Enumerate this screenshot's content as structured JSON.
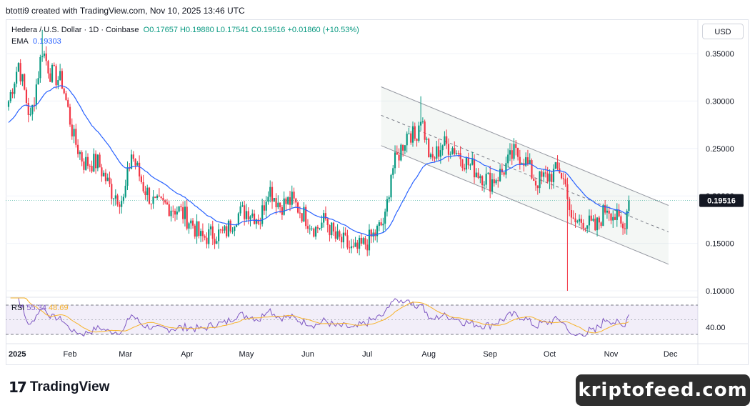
{
  "header": {
    "attribution": "btotti9 created with TradingView.com, Nov 10, 2025 13:46 UTC"
  },
  "legend": {
    "symbol": "Hedera / U.S. Dollar · 1D · Coinbase",
    "ohlc": "O0.17657  H0.19880  L0.17541  C0.19516  +0.01860 (+10.53%)",
    "ema_label": "EMA",
    "ema_value": "0.19303",
    "rsi_label": "RSI",
    "rsi_value": "55.34",
    "rsi_ma_value": "48.69"
  },
  "currency": "USD",
  "last_price_label": "0.19516",
  "footer": {
    "brand": "TradingView",
    "watermark": "kriptofeed.com"
  },
  "colors": {
    "up": "#089981",
    "down": "#f23645",
    "ema": "#2962ff",
    "rsi": "#7e57c2",
    "rsi_ma": "#f7b32b",
    "channel": "#9598a1"
  },
  "icons": [
    "tradingview-logo-icon"
  ],
  "chart_data": {
    "type": "candlestick",
    "price_axis": {
      "ticks": [
        0.35,
        0.3,
        0.25,
        0.2,
        0.15,
        0.1
      ],
      "tick_labels": [
        "0.35000",
        "0.30000",
        "0.25000",
        "0.20000",
        "0.15000",
        "0.10000"
      ],
      "ylim": [
        0.095,
        0.375
      ]
    },
    "rsi_axis": {
      "ticks": [
        40
      ],
      "tick_labels": [
        "40.00"
      ],
      "ylim": [
        20,
        90
      ],
      "bands": [
        30,
        70
      ]
    },
    "time_axis": {
      "labels": [
        "2025",
        "Feb",
        "Mar",
        "Apr",
        "May",
        "Jun",
        "Jul",
        "Aug",
        "Sep",
        "Oct",
        "Nov",
        "Dec"
      ],
      "start": "2025-01-01",
      "end": "2025-12-13"
    },
    "anchors": [
      [
        "2025-01-01",
        0.3
      ],
      [
        "2025-01-06",
        0.34
      ],
      [
        "2025-01-12",
        0.28
      ],
      [
        "2025-01-18",
        0.355
      ],
      [
        "2025-01-22",
        0.33
      ],
      [
        "2025-01-28",
        0.32
      ],
      [
        "2025-02-03",
        0.26
      ],
      [
        "2025-02-08",
        0.235
      ],
      [
        "2025-02-15",
        0.235
      ],
      [
        "2025-02-22",
        0.205
      ],
      [
        "2025-02-28",
        0.195
      ],
      [
        "2025-03-04",
        0.245
      ],
      [
        "2025-03-10",
        0.21
      ],
      [
        "2025-03-16",
        0.19
      ],
      [
        "2025-03-22",
        0.19
      ],
      [
        "2025-03-28",
        0.185
      ],
      [
        "2025-04-04",
        0.17
      ],
      [
        "2025-04-08",
        0.155
      ],
      [
        "2025-04-14",
        0.16
      ],
      [
        "2025-04-20",
        0.16
      ],
      [
        "2025-04-26",
        0.18
      ],
      [
        "2025-05-02",
        0.185
      ],
      [
        "2025-05-08",
        0.175
      ],
      [
        "2025-05-12",
        0.21
      ],
      [
        "2025-05-18",
        0.19
      ],
      [
        "2025-05-24",
        0.195
      ],
      [
        "2025-05-30",
        0.18
      ],
      [
        "2025-06-05",
        0.165
      ],
      [
        "2025-06-10",
        0.175
      ],
      [
        "2025-06-15",
        0.155
      ],
      [
        "2025-06-20",
        0.15
      ],
      [
        "2025-06-24",
        0.14
      ],
      [
        "2025-06-30",
        0.15
      ],
      [
        "2025-07-05",
        0.16
      ],
      [
        "2025-07-10",
        0.175
      ],
      [
        "2025-07-13",
        0.225
      ],
      [
        "2025-07-17",
        0.245
      ],
      [
        "2025-07-22",
        0.27
      ],
      [
        "2025-07-25",
        0.26
      ],
      [
        "2025-07-28",
        0.285
      ],
      [
        "2025-08-02",
        0.235
      ],
      [
        "2025-08-08",
        0.255
      ],
      [
        "2025-08-14",
        0.25
      ],
      [
        "2025-08-20",
        0.235
      ],
      [
        "2025-08-26",
        0.225
      ],
      [
        "2025-09-01",
        0.215
      ],
      [
        "2025-09-07",
        0.225
      ],
      [
        "2025-09-13",
        0.245
      ],
      [
        "2025-09-18",
        0.24
      ],
      [
        "2025-09-24",
        0.215
      ],
      [
        "2025-09-30",
        0.22
      ],
      [
        "2025-10-06",
        0.228
      ],
      [
        "2025-10-10",
        0.205
      ],
      [
        "2025-10-12",
        0.17
      ],
      [
        "2025-10-18",
        0.175
      ],
      [
        "2025-10-24",
        0.165
      ],
      [
        "2025-10-30",
        0.19
      ],
      [
        "2025-11-04",
        0.175
      ],
      [
        "2025-11-07",
        0.165
      ],
      [
        "2025-11-10",
        0.195
      ]
    ],
    "wick_extremes": [
      {
        "date": "2025-10-10",
        "low": 0.1
      },
      {
        "date": "2025-01-18",
        "high": 0.375
      },
      {
        "date": "2025-07-28",
        "high": 0.305
      }
    ],
    "ema_period_days": 30,
    "descending_channel": {
      "upper": [
        [
          "2025-07-08",
          0.315
        ],
        [
          "2025-11-30",
          0.19
        ]
      ],
      "middle": [
        [
          "2025-07-08",
          0.285
        ],
        [
          "2025-11-30",
          0.162
        ]
      ],
      "lower": [
        [
          "2025-07-08",
          0.253
        ],
        [
          "2025-11-30",
          0.128
        ]
      ]
    }
  }
}
